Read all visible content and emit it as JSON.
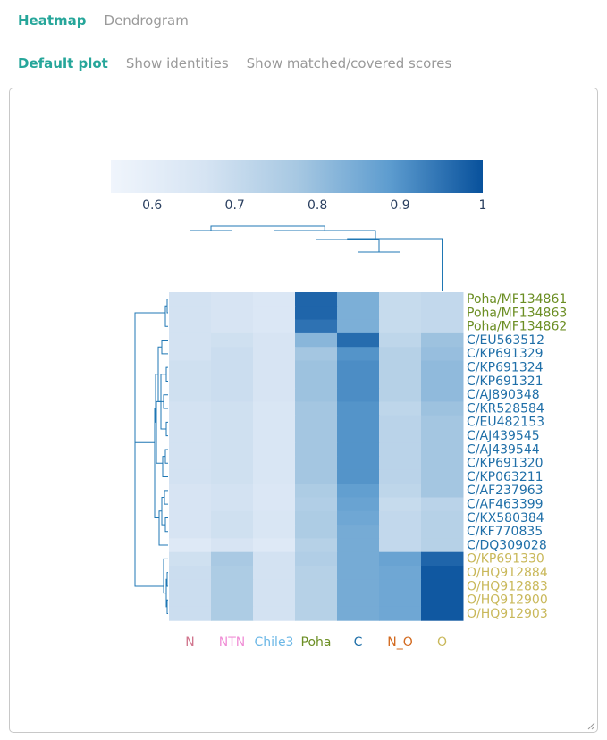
{
  "tabs": [
    {
      "label": "Heatmap",
      "active": true
    },
    {
      "label": "Dendrogram",
      "active": false
    }
  ],
  "subtabs": [
    {
      "label": "Default plot",
      "active": true
    },
    {
      "label": "Show identities",
      "active": false
    },
    {
      "label": "Show matched/covered scores",
      "active": false
    }
  ],
  "colors": {
    "accent": "#26a69a",
    "dendrogram": "#1f77b4",
    "scale_low": "#eef3fb",
    "scale_high": "#08519c"
  },
  "chart_data": {
    "type": "heatmap",
    "colorbar": {
      "min": 0.55,
      "max": 1,
      "ticks": [
        "0.6",
        "0.7",
        "0.8",
        "0.9",
        "1"
      ],
      "tick_values": [
        0.6,
        0.7,
        0.8,
        0.9,
        1.0
      ]
    },
    "columns": [
      {
        "label": "N",
        "color": "#d1758d"
      },
      {
        "label": "NTN",
        "color": "#f08fd6"
      },
      {
        "label": "Chile3",
        "color": "#6bb7e6"
      },
      {
        "label": "Poha",
        "color": "#6b8e23"
      },
      {
        "label": "C",
        "color": "#1f6fa8"
      },
      {
        "label": "N_O",
        "color": "#d2691e"
      },
      {
        "label": "O",
        "color": "#c9b85a"
      }
    ],
    "rows": [
      {
        "label": "Poha/MF134861",
        "color": "#6b8e23",
        "values": [
          0.67,
          0.66,
          0.64,
          0.97,
          0.84,
          0.7,
          0.71
        ]
      },
      {
        "label": "Poha/MF134863",
        "color": "#6b8e23",
        "values": [
          0.67,
          0.66,
          0.64,
          0.97,
          0.84,
          0.7,
          0.71
        ]
      },
      {
        "label": "Poha/MF134862",
        "color": "#6b8e23",
        "values": [
          0.67,
          0.66,
          0.64,
          0.95,
          0.84,
          0.7,
          0.71
        ]
      },
      {
        "label": "C/EU563512",
        "color": "#1f6fa8",
        "values": [
          0.67,
          0.68,
          0.66,
          0.82,
          0.96,
          0.72,
          0.79
        ]
      },
      {
        "label": "C/KP691329",
        "color": "#1f6fa8",
        "values": [
          0.67,
          0.69,
          0.66,
          0.78,
          0.9,
          0.74,
          0.8
        ]
      },
      {
        "label": "C/KP691324",
        "color": "#1f6fa8",
        "values": [
          0.68,
          0.69,
          0.66,
          0.79,
          0.91,
          0.74,
          0.81
        ]
      },
      {
        "label": "C/KP691321",
        "color": "#1f6fa8",
        "values": [
          0.68,
          0.69,
          0.66,
          0.79,
          0.91,
          0.74,
          0.81
        ]
      },
      {
        "label": "C/AJ890348",
        "color": "#1f6fa8",
        "values": [
          0.68,
          0.69,
          0.66,
          0.79,
          0.91,
          0.74,
          0.81
        ]
      },
      {
        "label": "C/KR528584",
        "color": "#1f6fa8",
        "values": [
          0.67,
          0.68,
          0.65,
          0.78,
          0.9,
          0.72,
          0.79
        ]
      },
      {
        "label": "C/EU482153",
        "color": "#1f6fa8",
        "values": [
          0.67,
          0.68,
          0.65,
          0.78,
          0.9,
          0.73,
          0.78
        ]
      },
      {
        "label": "C/AJ439545",
        "color": "#1f6fa8",
        "values": [
          0.67,
          0.68,
          0.65,
          0.78,
          0.9,
          0.73,
          0.78
        ]
      },
      {
        "label": "C/AJ439544",
        "color": "#1f6fa8",
        "values": [
          0.67,
          0.68,
          0.65,
          0.78,
          0.9,
          0.73,
          0.78
        ]
      },
      {
        "label": "C/KP691320",
        "color": "#1f6fa8",
        "values": [
          0.67,
          0.68,
          0.65,
          0.78,
          0.9,
          0.73,
          0.78
        ]
      },
      {
        "label": "C/KP063211",
        "color": "#1f6fa8",
        "values": [
          0.67,
          0.68,
          0.65,
          0.78,
          0.9,
          0.73,
          0.78
        ]
      },
      {
        "label": "C/AF237963",
        "color": "#1f6fa8",
        "values": [
          0.66,
          0.67,
          0.64,
          0.76,
          0.88,
          0.72,
          0.78
        ]
      },
      {
        "label": "C/AF463399",
        "color": "#1f6fa8",
        "values": [
          0.66,
          0.67,
          0.64,
          0.75,
          0.87,
          0.7,
          0.73
        ]
      },
      {
        "label": "C/KX580384",
        "color": "#1f6fa8",
        "values": [
          0.66,
          0.68,
          0.65,
          0.76,
          0.86,
          0.71,
          0.74
        ]
      },
      {
        "label": "C/KF770835",
        "color": "#1f6fa8",
        "values": [
          0.66,
          0.68,
          0.65,
          0.76,
          0.85,
          0.71,
          0.74
        ]
      },
      {
        "label": "C/DQ309028",
        "color": "#1f6fa8",
        "values": [
          0.63,
          0.66,
          0.63,
          0.74,
          0.85,
          0.71,
          0.74
        ]
      },
      {
        "label": "O/KP691330",
        "color": "#c9b85a",
        "values": [
          0.68,
          0.77,
          0.67,
          0.75,
          0.85,
          0.87,
          0.97
        ]
      },
      {
        "label": "O/HQ912884",
        "color": "#c9b85a",
        "values": [
          0.69,
          0.76,
          0.67,
          0.74,
          0.85,
          0.86,
          0.99
        ]
      },
      {
        "label": "O/HQ912883",
        "color": "#c9b85a",
        "values": [
          0.69,
          0.76,
          0.67,
          0.74,
          0.85,
          0.86,
          0.99
        ]
      },
      {
        "label": "O/HQ912900",
        "color": "#c9b85a",
        "values": [
          0.69,
          0.76,
          0.67,
          0.74,
          0.85,
          0.86,
          0.99
        ]
      },
      {
        "label": "O/HQ912903",
        "color": "#c9b85a",
        "values": [
          0.69,
          0.76,
          0.67,
          0.74,
          0.85,
          0.86,
          0.99
        ]
      }
    ]
  }
}
